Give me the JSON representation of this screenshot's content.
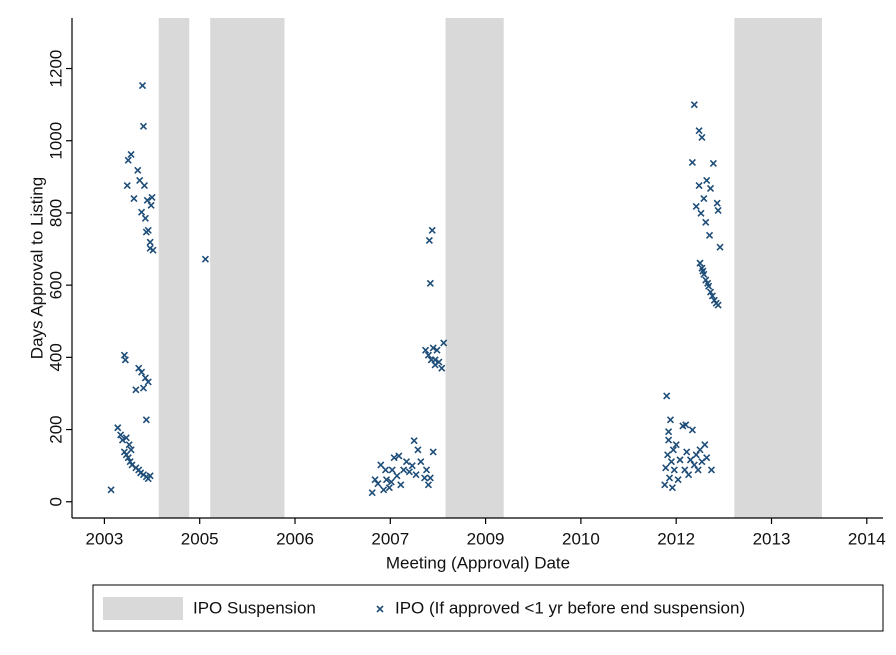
{
  "chart_data": {
    "type": "scatter",
    "x_label": "Meeting (Approval) Date",
    "y_label": "Days Approval to Listing",
    "xlim": [
      2002.66,
      2011.17
    ],
    "ylim": [
      -45,
      1340
    ],
    "xticks": [
      {
        "value": 2003,
        "label": "2003"
      },
      {
        "value": 2004,
        "label": "2005"
      },
      {
        "value": 2005,
        "label": "2006"
      },
      {
        "value": 2006,
        "label": "2007"
      },
      {
        "value": 2007,
        "label": "2009"
      },
      {
        "value": 2008,
        "label": "2010"
      },
      {
        "value": 2009,
        "label": "2012"
      },
      {
        "value": 2010,
        "label": "2013"
      },
      {
        "value": 2011,
        "label": "2014"
      }
    ],
    "yticks": [
      0,
      200,
      400,
      600,
      800,
      1000,
      1200
    ],
    "spans": {
      "name": "IPO Suspension",
      "color": "#d9d9d9",
      "ranges": [
        [
          2003.57,
          2003.89
        ],
        [
          2004.11,
          2004.89
        ],
        [
          2006.58,
          2007.19
        ],
        [
          2009.61,
          2010.53
        ]
      ]
    },
    "series": [
      {
        "name": "IPO (If approved <1 yr before end suspension)",
        "color": "#1f4e79",
        "x": [
          2003.07,
          2003.14,
          2003.17,
          2003.19,
          2003.21,
          2003.23,
          2003.25,
          2003.27,
          2003.29,
          2003.33,
          2003.36,
          2003.38,
          2003.41,
          2003.44,
          2003.46,
          2003.48,
          2003.23,
          2003.26,
          2003.28,
          2003.21,
          2003.22,
          2003.33,
          2003.36,
          2003.39,
          2003.41,
          2003.43,
          2003.46,
          2003.44,
          2003.24,
          2003.25,
          2003.28,
          2003.31,
          2003.35,
          2003.37,
          2003.39,
          2003.4,
          2003.41,
          2003.42,
          2003.43,
          2003.45,
          2003.46,
          2003.48,
          2003.49,
          2003.5,
          2003.51,
          2003.48,
          2003.44,
          2004.06,
          2005.81,
          2005.84,
          2005.87,
          2005.9,
          2005.93,
          2005.96,
          2005.99,
          2006.02,
          2006.04,
          2006.07,
          2006.11,
          2006.14,
          2006.17,
          2006.2,
          2006.23,
          2006.25,
          2006.27,
          2006.29,
          2006.32,
          2006.36,
          2006.38,
          2006.4,
          2006.42,
          2006.45,
          2006.09,
          2006.01,
          2005.95,
          2006.37,
          2006.4,
          2006.43,
          2006.45,
          2006.47,
          2006.49,
          2006.51,
          2006.54,
          2006.56,
          2006.47,
          2006.41,
          2006.44,
          2006.42,
          2008.88,
          2008.89,
          2008.9,
          2008.91,
          2008.92,
          2008.93,
          2008.94,
          2008.95,
          2008.96,
          2008.97,
          2008.98,
          2009.0,
          2009.02,
          2009.04,
          2009.07,
          2009.09,
          2009.11,
          2009.13,
          2009.15,
          2009.17,
          2009.19,
          2009.21,
          2009.23,
          2009.25,
          2009.27,
          2009.3,
          2009.32,
          2009.37,
          2009.1,
          2008.92,
          2009.19,
          2009.24,
          2009.27,
          2009.17,
          2009.39,
          2009.24,
          2009.32,
          2009.36,
          2009.21,
          2009.29,
          2009.43,
          2009.44,
          2009.26,
          2009.31,
          2009.35,
          2009.46,
          2009.25,
          2009.27,
          2009.29,
          2009.31,
          2009.34,
          2009.36,
          2009.38,
          2009.4,
          2009.42,
          2009.44,
          2009.28,
          2009.33
        ],
        "values": [
          33,
          205,
          185,
          171,
          138,
          130,
          122,
          111,
          102,
          94,
          88,
          80,
          75,
          69,
          64,
          72,
          177,
          158,
          144,
          406,
          393,
          310,
          370,
          359,
          315,
          343,
          332,
          227,
          876,
          946,
          962,
          840,
          918,
          890,
          802,
          1153,
          1040,
          876,
          785,
          835,
          752,
          719,
          821,
          843,
          697,
          702,
          747,
          672,
          25,
          61,
          50,
          102,
          33,
          61,
          39,
          88,
          122,
          72,
          47,
          88,
          111,
          83,
          100,
          169,
          75,
          144,
          111,
          66,
          88,
          47,
          66,
          138,
          127,
          55,
          88,
          420,
          406,
          393,
          426,
          379,
          420,
          387,
          370,
          440,
          393,
          724,
          752,
          605,
          47,
          94,
          293,
          130,
          171,
          66,
          227,
          111,
          39,
          144,
          88,
          158,
          61,
          116,
          210,
          88,
          138,
          75,
          116,
          199,
          102,
          130,
          88,
          144,
          111,
          158,
          122,
          88,
          213,
          194,
          1100,
          1028,
          1009,
          940,
          937,
          876,
          890,
          868,
          818,
          840,
          827,
          807,
          799,
          774,
          738,
          705,
          661,
          647,
          630,
          614,
          597,
          581,
          570,
          558,
          550,
          545,
          639,
          605
        ]
      }
    ]
  }
}
